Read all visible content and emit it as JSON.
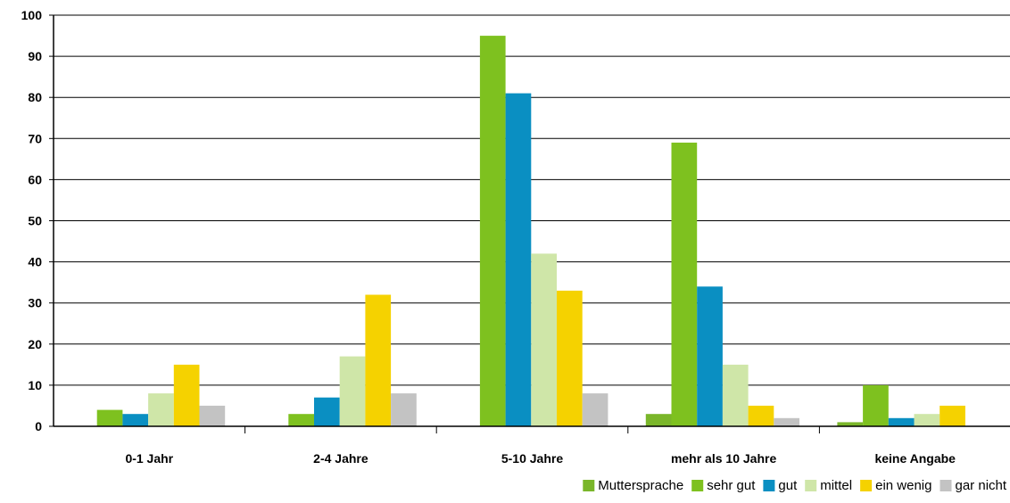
{
  "chart_data": {
    "type": "bar",
    "title": "",
    "xlabel": "",
    "ylabel": "",
    "categories": [
      "0-1 Jahr",
      "2-4 Jahre",
      "5-10 Jahre",
      "mehr als 10 Jahre",
      "keine Angabe"
    ],
    "series": [
      {
        "name": "Muttersprache",
        "color": "#7ab62a",
        "values": [
          0,
          0,
          0,
          3,
          1
        ]
      },
      {
        "name": "sehr gut",
        "color": "#7ec11f",
        "values": [
          4,
          3,
          95,
          69,
          10
        ]
      },
      {
        "name": "gut",
        "color": "#0a8fc2",
        "values": [
          3,
          7,
          81,
          34,
          2
        ]
      },
      {
        "name": "mittel",
        "color": "#cfe6a8",
        "values": [
          8,
          17,
          42,
          15,
          3
        ]
      },
      {
        "name": "ein wenig",
        "color": "#f5d200",
        "values": [
          15,
          32,
          33,
          5,
          5
        ]
      },
      {
        "name": "gar nicht",
        "color": "#c3c3c3",
        "values": [
          5,
          8,
          8,
          2,
          0
        ]
      }
    ],
    "ylim": [
      0,
      100
    ],
    "yticks": [
      0,
      10,
      20,
      30,
      40,
      50,
      60,
      70,
      80,
      90,
      100
    ],
    "grid": true,
    "legend_position": "bottom-right"
  }
}
